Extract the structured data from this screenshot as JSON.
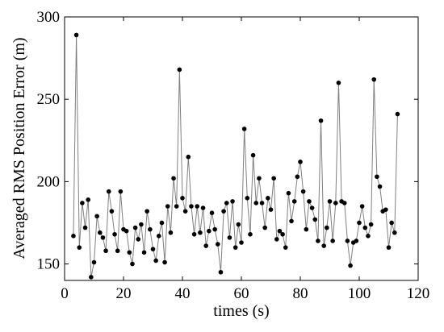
{
  "chart_data": {
    "type": "line",
    "xlabel": "times (s)",
    "ylabel": "Averaged RMS Position Error (m)",
    "xlim": [
      0,
      120
    ],
    "ylim": [
      140,
      300
    ],
    "xticks": [
      0,
      20,
      40,
      60,
      80,
      100,
      120
    ],
    "yticks": [
      150,
      200,
      250,
      300
    ],
    "grid": false,
    "line_color": "#808080",
    "marker_color": "#000000",
    "x": [
      3,
      4,
      5,
      6,
      7,
      8,
      9,
      10,
      11,
      12,
      13,
      14,
      15,
      16,
      17,
      18,
      19,
      20,
      21,
      22,
      23,
      24,
      25,
      26,
      27,
      28,
      29,
      30,
      31,
      32,
      33,
      34,
      35,
      36,
      37,
      38,
      39,
      40,
      41,
      42,
      43,
      44,
      45,
      46,
      47,
      48,
      49,
      50,
      51,
      52,
      53,
      54,
      55,
      56,
      57,
      58,
      59,
      60,
      61,
      62,
      63,
      64,
      65,
      66,
      67,
      68,
      69,
      70,
      71,
      72,
      73,
      74,
      75,
      76,
      77,
      78,
      79,
      80,
      81,
      82,
      83,
      84,
      85,
      86,
      87,
      88,
      89,
      90,
      91,
      92,
      93,
      94,
      95,
      96,
      97,
      98,
      99,
      100,
      101,
      102,
      103,
      104,
      105,
      106,
      107,
      108,
      109,
      110,
      111,
      112,
      113
    ],
    "values": [
      167,
      289,
      160,
      187,
      172,
      189,
      142,
      151,
      179,
      169,
      166,
      158,
      194,
      182,
      168,
      158,
      194,
      171,
      170,
      157,
      150,
      172,
      165,
      174,
      157,
      182,
      171,
      159,
      152,
      167,
      175,
      151,
      185,
      169,
      202,
      185,
      268,
      190,
      182,
      215,
      185,
      168,
      185,
      169,
      184,
      161,
      170,
      181,
      171,
      162,
      145,
      182,
      187,
      166,
      188,
      160,
      174,
      163,
      232,
      190,
      168,
      216,
      187,
      202,
      187,
      172,
      190,
      183,
      202,
      165,
      170,
      168,
      160,
      193,
      176,
      188,
      203,
      212,
      194,
      171,
      188,
      184,
      177,
      164,
      237,
      161,
      172,
      188,
      164,
      187,
      260,
      188,
      187,
      164,
      149,
      163,
      164,
      175,
      185,
      172,
      167,
      174,
      262,
      203,
      197,
      182,
      183,
      160,
      175,
      169,
      241
    ]
  }
}
